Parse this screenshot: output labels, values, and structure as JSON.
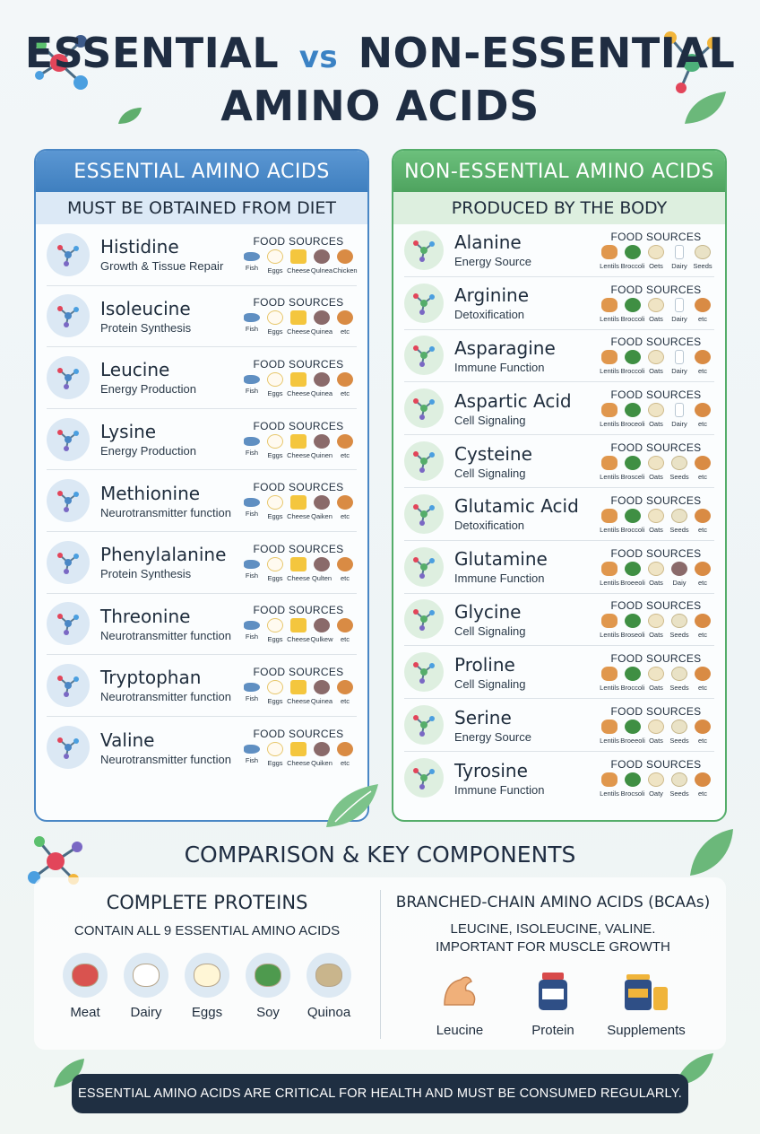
{
  "title": {
    "line1_a": "ESSENTIAL",
    "vs": "vs",
    "line1_b": "NON-ESSENTIAL",
    "line2": "AMINO ACIDS"
  },
  "essential": {
    "header": "ESSENTIAL AMINO ACIDS",
    "subheader": "MUST BE OBTAINED FROM DIET",
    "food_sources_label": "FOOD SOURCES",
    "items": [
      {
        "name": "Histidine",
        "function": "Growth & Tissue Repair",
        "foods": [
          "Fish",
          "Eggs",
          "Cheese",
          "Qulnea",
          "Chicken"
        ]
      },
      {
        "name": "Isoleucine",
        "function": "Protein Synthesis",
        "foods": [
          "Fish",
          "Eggs",
          "Cheese",
          "Quinea",
          "etc"
        ]
      },
      {
        "name": "Leucine",
        "function": "Energy Production",
        "foods": [
          "Fish",
          "Eggs",
          "Cheese",
          "Quinea",
          "etc"
        ]
      },
      {
        "name": "Lysine",
        "function": "Energy Production",
        "foods": [
          "Fish",
          "Eggs",
          "Cheese",
          "Quinen",
          "etc"
        ]
      },
      {
        "name": "Methionine",
        "function": "Neurotransmitter function",
        "foods": [
          "Fish",
          "Eggs",
          "Cheese",
          "Qaiken",
          "etc"
        ]
      },
      {
        "name": "Phenylalanine",
        "function": "Protein Synthesis",
        "foods": [
          "Fish",
          "Eggs",
          "Cheese",
          "Qulten",
          "etc"
        ]
      },
      {
        "name": "Threonine",
        "function": "Neurotransmitter function",
        "foods": [
          "Fish",
          "Eggs",
          "Cheese",
          "Qulkew",
          "etc"
        ]
      },
      {
        "name": "Tryptophan",
        "function": "Neurotransmitter function",
        "foods": [
          "Fish",
          "Eggs",
          "Cheese",
          "Quinea",
          "etc"
        ]
      },
      {
        "name": "Valine",
        "function": "Neurotransmitter function",
        "foods": [
          "Fish",
          "Eggs",
          "Cheese",
          "Quiken",
          "etc"
        ]
      }
    ]
  },
  "nonessential": {
    "header": "NON-ESSENTIAL AMINO ACIDS",
    "subheader": "PRODUCED BY THE BODY",
    "food_sources_label": "FOOD SOURCES",
    "items": [
      {
        "name": "Alanine",
        "function": "Energy Source",
        "foods": [
          "Lentils",
          "Broccoli",
          "Oets",
          "Dairy",
          "Seeds"
        ]
      },
      {
        "name": "Arginine",
        "function": "Detoxification",
        "foods": [
          "Lentils",
          "Broccoli",
          "Oats",
          "Dairy",
          "etc"
        ]
      },
      {
        "name": "Asparagine",
        "function": "Immune Function",
        "foods": [
          "Lentils",
          "Broccoli",
          "Oats",
          "Dairy",
          "etc"
        ]
      },
      {
        "name": "Aspartic Acid",
        "function": "Cell Signaling",
        "foods": [
          "Lentils",
          "Broceoli",
          "Oats",
          "Dairy",
          "etc"
        ]
      },
      {
        "name": "Cysteine",
        "function": "Cell Signaling",
        "foods": [
          "Lentils",
          "Brosceli",
          "Oats",
          "Seeds",
          "etc"
        ]
      },
      {
        "name": "Glutamic Acid",
        "function": "Detoxification",
        "foods": [
          "Lentils",
          "Broccoli",
          "Oats",
          "Seeds",
          "etc"
        ]
      },
      {
        "name": "Glutamine",
        "function": "Immune Function",
        "foods": [
          "Lentils",
          "Broeeoli",
          "Oats",
          "Daiy",
          "etc"
        ]
      },
      {
        "name": "Glycine",
        "function": "Cell Signaling",
        "foods": [
          "Lentils",
          "Broseoli",
          "Oats",
          "Seeds",
          "etc"
        ]
      },
      {
        "name": "Proline",
        "function": "Cell Signaling",
        "foods": [
          "Lentils",
          "Broccoli",
          "Oats",
          "Seeds",
          "etc"
        ]
      },
      {
        "name": "Serine",
        "function": "Energy Source",
        "foods": [
          "Lentils",
          "Broeeoli",
          "Oats",
          "Seeds",
          "etc"
        ]
      },
      {
        "name": "Tyrosine",
        "function": "Immune Function",
        "foods": [
          "Lentils",
          "Brocsoli",
          "Oaty",
          "Seeds",
          "etc"
        ]
      }
    ]
  },
  "comparison": {
    "title": "COMPARISON & KEY COMPONENTS",
    "complete": {
      "title": "COMPLETE PROTEINS",
      "subtitle": "CONTAIN ALL 9 ESSENTIAL AMINO ACIDS",
      "items": [
        "Meat",
        "Dairy",
        "Eggs",
        "Soy",
        "Quinoa"
      ]
    },
    "bcaa": {
      "title": "BRANCHED-CHAIN AMINO ACIDS (BCAAs)",
      "subtitle_1": "LEUCINE, ISOLEUCINE, VALINE.",
      "subtitle_2": "IMPORTANT FOR MUSCLE GROWTH",
      "items": [
        "Leucine",
        "Protein",
        "Supplements"
      ]
    }
  },
  "footer": "ESSENTIAL AMINO ACIDS ARE CRITICAL FOR HEALTH AND MUST BE CONSUMED REGULARLY.",
  "colors": {
    "essential": "#4a87c5",
    "nonessential": "#55ad6a",
    "title": "#1f2d42",
    "footer_bg": "#1f2f42"
  }
}
